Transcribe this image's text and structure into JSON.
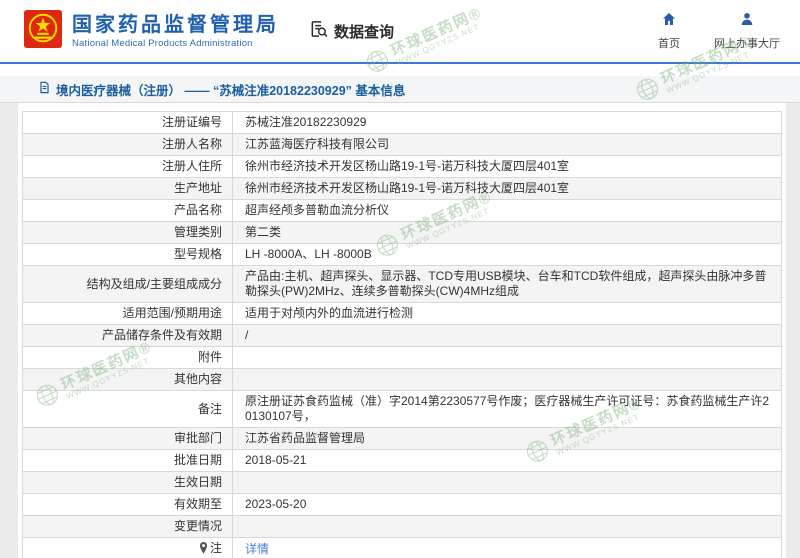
{
  "header": {
    "agency_title": "国家药品监督管理局",
    "agency_subtitle": "National Medical Products Administration",
    "nav_tab_label": "数据查询",
    "quick_links": [
      {
        "icon": "home-icon",
        "label": "首页"
      },
      {
        "icon": "user-icon",
        "label": "网上办事大厅"
      }
    ]
  },
  "breadcrumb": {
    "text": "境内医疗器械（注册） —— “苏械注准20182230929” 基本信息"
  },
  "table": {
    "rows": [
      {
        "label": "注册证编号",
        "value": "苏械注准20182230929"
      },
      {
        "label": "注册人名称",
        "value": "江苏蓝海医疗科技有限公司"
      },
      {
        "label": "注册人住所",
        "value": "徐州市经济技术开发区杨山路19-1号-诺万科技大厦四层401室"
      },
      {
        "label": "生产地址",
        "value": "徐州市经济技术开发区杨山路19-1号-诺万科技大厦四层401室"
      },
      {
        "label": "产品名称",
        "value": "超声经颅多普勒血流分析仪"
      },
      {
        "label": "管理类别",
        "value": "第二类"
      },
      {
        "label": "型号规格",
        "value": "LH -8000A、LH -8000B"
      },
      {
        "label": "结构及组成/主要组成成分",
        "value": "产品由:主机、超声探头、显示器、TCD专用USB模块、台车和TCD软件组成，超声探头由脉冲多普勒探头(PW)2MHz、连续多普勒探头(CW)4MHz组成"
      },
      {
        "label": "适用范围/预期用途",
        "value": "适用于对颅内外的血流进行检测"
      },
      {
        "label": "产品储存条件及有效期",
        "value": "/"
      },
      {
        "label": "附件",
        "value": ""
      },
      {
        "label": "其他内容",
        "value": ""
      },
      {
        "label": "备注",
        "value": "原注册证苏食药监械（准）字2014第2230577号作废；医疗器械生产许可证号：苏食药监械生产许20130107号，"
      },
      {
        "label": "审批部门",
        "value": "江苏省药品监督管理局"
      },
      {
        "label": "批准日期",
        "value": "2018-05-21"
      },
      {
        "label": "生效日期",
        "value": ""
      },
      {
        "label": "有效期至",
        "value": "2023-05-20"
      },
      {
        "label": "变更情况",
        "value": ""
      },
      {
        "label": "注",
        "value": "详情",
        "icon": "pin-icon",
        "link": true
      }
    ]
  },
  "watermark": {
    "name": "环球医药网",
    "reg": "®",
    "site": "WWW.QGYYZS.NET"
  },
  "colors": {
    "header_line_blue": "#3c7ad1",
    "title_blue": "#2060ae",
    "icon_blue": "#2b5cad",
    "breadcrumb_blue": "#1b5e9e",
    "link_blue": "#4285d3",
    "watermark_green": "#79b079",
    "emblem_red": "#de2910",
    "emblem_gold": "#ffde00",
    "alt_row_gray": "#f4f4f4"
  }
}
